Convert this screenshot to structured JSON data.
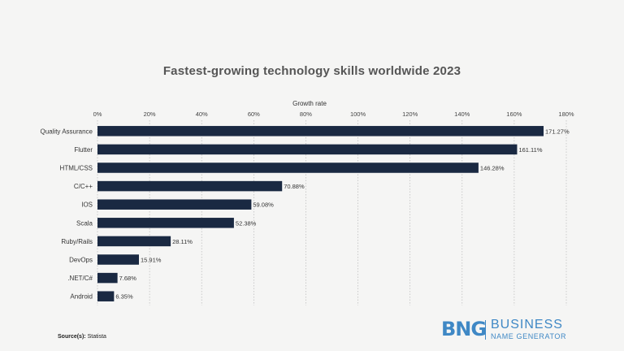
{
  "chart_data": {
    "type": "bar",
    "orientation": "horizontal",
    "title": "Fastest-growing technology skills worldwide 2023",
    "xlabel": "Growth rate",
    "ylabel": "",
    "xlim": [
      0,
      180
    ],
    "xticks": [
      0,
      20,
      40,
      60,
      80,
      100,
      120,
      140,
      160,
      180
    ],
    "xtick_labels": [
      "0%",
      "20%",
      "40%",
      "60%",
      "80%",
      "100%",
      "120%",
      "140%",
      "160%",
      "180%"
    ],
    "grid": "vertical dotted",
    "categories": [
      "Quality Assurance",
      "Flutter",
      "HTML/CSS",
      "C/C++",
      "IOS",
      "Scala",
      "Ruby/Rails",
      "DevOps",
      ".NET/C#",
      "Android"
    ],
    "values": [
      171.27,
      161.11,
      146.28,
      70.88,
      59.08,
      52.38,
      28.11,
      15.91,
      7.68,
      6.35
    ],
    "value_labels": [
      "171.27%",
      "161.11%",
      "146.28%",
      "70.88%",
      "59.08%",
      "52.38%",
      "28.11%",
      "15.91%",
      "7.68%",
      "6.35%"
    ],
    "bar_color": "#1a2942"
  },
  "footer": {
    "source_label": "Source(s):",
    "source_value": "Statista"
  },
  "logo": {
    "mark": "BNG",
    "line1": "BUSINESS",
    "line2": "NAME GENERATOR",
    "color": "#3f88c5"
  }
}
